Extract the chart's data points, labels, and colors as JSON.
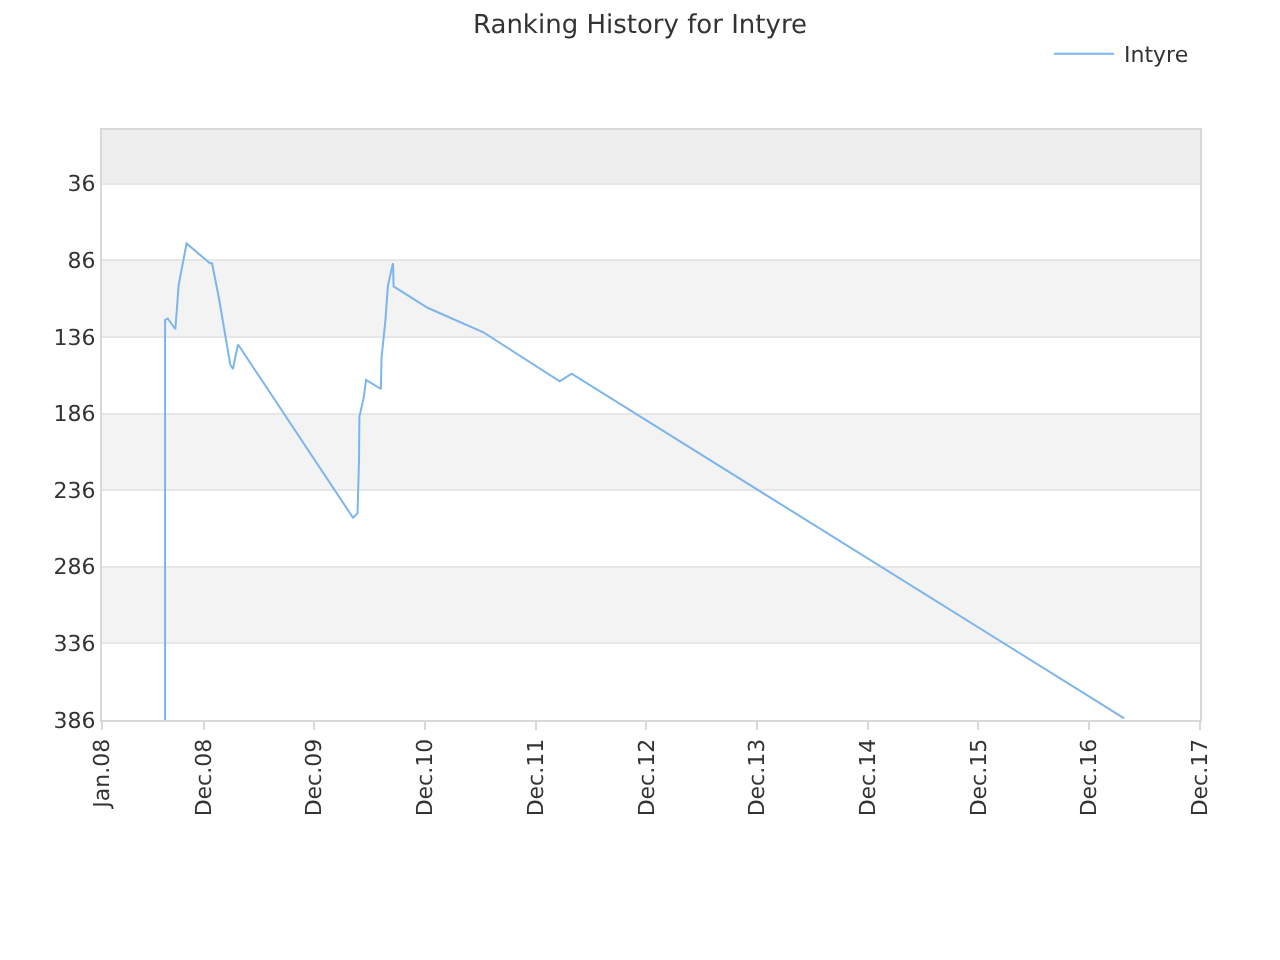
{
  "chart_data": {
    "type": "line",
    "title": "Ranking History for Intyre",
    "x": [
      "2008-07-27",
      "2008-07-27",
      "2008-08-05",
      "2008-08-30",
      "2008-09-10",
      "2008-10-06",
      "2008-12-22",
      "2008-12-29",
      "2009-01-20",
      "2009-02-27",
      "2009-03-08",
      "2009-03-16",
      "2009-03-25",
      "2010-04-08",
      "2010-04-23",
      "2010-04-28",
      "2010-04-29",
      "2010-05-13",
      "2010-05-21",
      "2010-07-09",
      "2010-07-11",
      "2010-07-24",
      "2010-08-01",
      "2010-08-14",
      "2010-08-18",
      "2010-08-20",
      "2010-12-10",
      "2011-06-12",
      "2012-02-19",
      "2012-03-29",
      "2017-03-26"
    ],
    "series": [
      {
        "name": "Intyre",
        "color": "#7cb5ec",
        "values": [
          386,
          125,
          124,
          131,
          102,
          75,
          88,
          88,
          110,
          154,
          157,
          149,
          141,
          254,
          251,
          215,
          188,
          176,
          164,
          170,
          150,
          125,
          103,
          91,
          88,
          103,
          117,
          133,
          165,
          160,
          385
        ]
      }
    ],
    "xlim": [
      "2008-01-01",
      "2017-12-01"
    ],
    "xticks": [
      {
        "value": "2008-01-01",
        "label": "Jan.08"
      },
      {
        "value": "2008-12-01",
        "label": "Dec.08"
      },
      {
        "value": "2009-12-01",
        "label": "Dec.09"
      },
      {
        "value": "2010-12-01",
        "label": "Dec.10"
      },
      {
        "value": "2011-12-01",
        "label": "Dec.11"
      },
      {
        "value": "2012-12-01",
        "label": "Dec.12"
      },
      {
        "value": "2013-12-01",
        "label": "Dec.13"
      },
      {
        "value": "2014-12-01",
        "label": "Dec.14"
      },
      {
        "value": "2015-12-01",
        "label": "Dec.15"
      },
      {
        "value": "2016-12-01",
        "label": "Dec.16"
      },
      {
        "value": "2017-12-01",
        "label": "Dec.17"
      }
    ],
    "ylim": [
      386,
      1
    ],
    "yticks": [
      36,
      86,
      136,
      186,
      236,
      286,
      336,
      386
    ],
    "bands": [
      {
        "axis": "y",
        "from": 1,
        "to": 36,
        "color": "#eeeeee"
      },
      {
        "axis": "y",
        "from": 86,
        "to": 136,
        "color": "#f3f3f3"
      },
      {
        "axis": "y",
        "from": 186,
        "to": 236,
        "color": "#f3f3f3"
      },
      {
        "axis": "y",
        "from": 286,
        "to": 336,
        "color": "#f3f3f3"
      }
    ],
    "grid": "y",
    "legend": "top right",
    "marker": "none",
    "line_style": "solid"
  }
}
